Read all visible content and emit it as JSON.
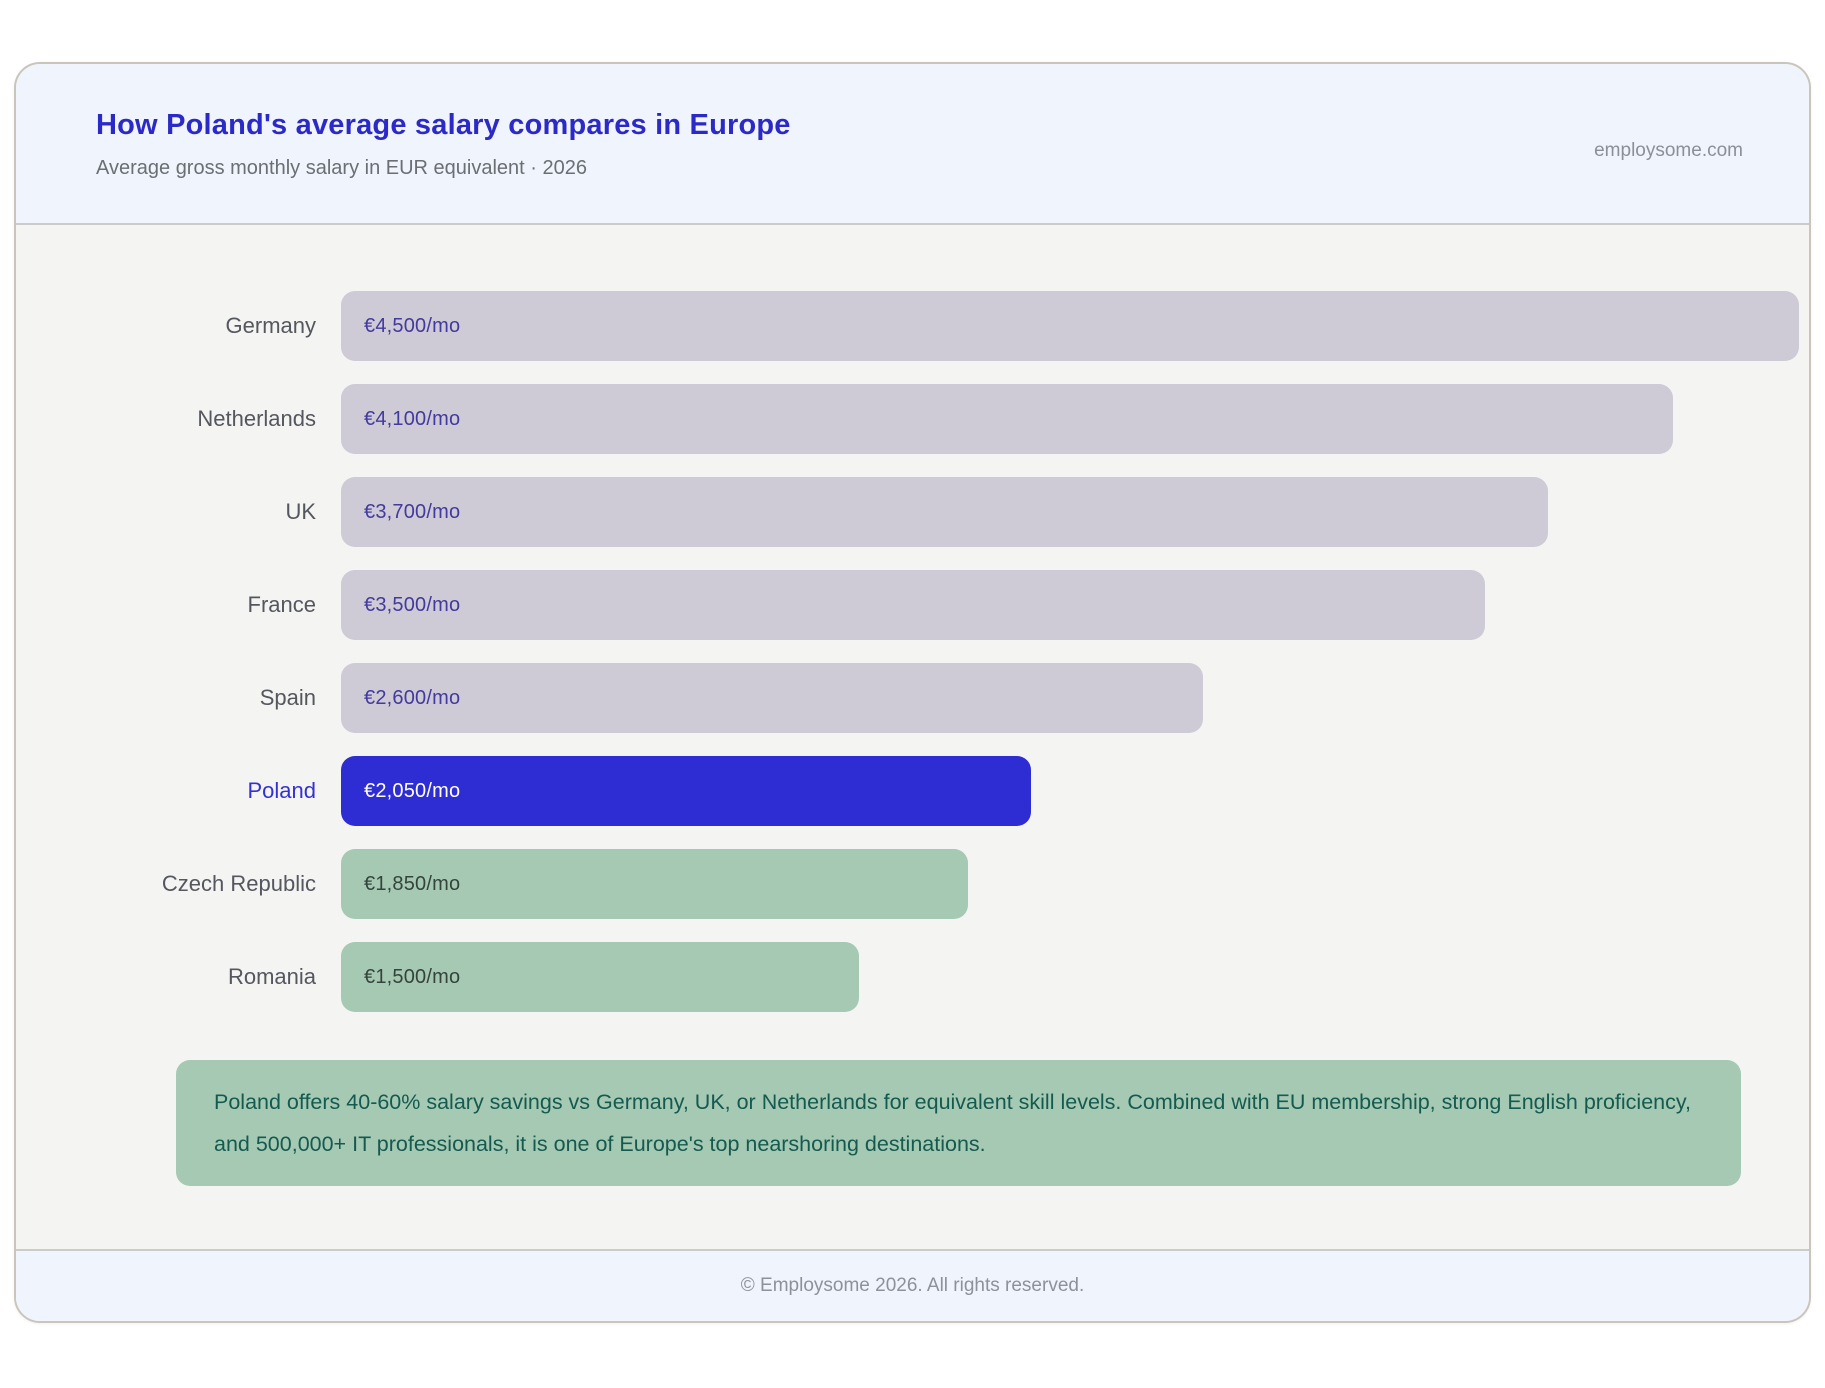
{
  "header": {
    "title": "How Poland's average salary compares in Europe",
    "subtitle": "Average gross monthly salary in EUR equivalent · 2026",
    "brand": "employsome.com"
  },
  "chart_data": {
    "type": "bar",
    "orientation": "horizontal",
    "title": "How Poland's average salary compares in Europe",
    "subtitle": "Average gross monthly salary in EUR equivalent · 2026",
    "unit": "EUR per month (gross)",
    "year": "2026",
    "categories": [
      "Germany",
      "Netherlands",
      "UK",
      "France",
      "Spain",
      "Poland",
      "Czech Republic",
      "Romania"
    ],
    "values": [
      4500,
      4100,
      3700,
      3500,
      2600,
      2050,
      1850,
      1500
    ],
    "value_labels": [
      "€4,500/mo",
      "€4,100/mo",
      "€3,700/mo",
      "€3,500/mo",
      "€2,600/mo",
      "€2,050/mo",
      "€1,850/mo",
      "€1,500/mo"
    ],
    "xlim": [
      0,
      4500
    ],
    "grid": false,
    "legend": false,
    "highlight_category": "Poland",
    "bar_styles": [
      "neutral",
      "neutral",
      "neutral",
      "neutral",
      "neutral",
      "highlight",
      "positive",
      "positive"
    ],
    "colors": {
      "neutral": "#cecad6",
      "highlight": "#2e2cd3",
      "positive": "#a6c9b4"
    },
    "value_colors": {
      "neutral": "#423a9e",
      "highlight": "#ffffff",
      "positive": "#34443b"
    },
    "label_color": "#54575e",
    "label_highlight_color": "#3431d2"
  },
  "note": {
    "text": "Poland offers 40-60% salary savings vs Germany, UK, or Netherlands for equivalent skill levels. Combined with EU membership, strong English proficiency, and 500,000+ IT professionals, it is one of Europe's top nearshoring destinations.",
    "background": "#a6c9b4",
    "text_color": "#155a4f"
  },
  "footer": {
    "copyright": "© Employsome 2026. All rights reserved."
  },
  "theme": {
    "title_color": "#2b29c7",
    "header_background": "#f0f4fc",
    "card_background": "#f4f4f3",
    "border_color": "#cbcbcb"
  }
}
